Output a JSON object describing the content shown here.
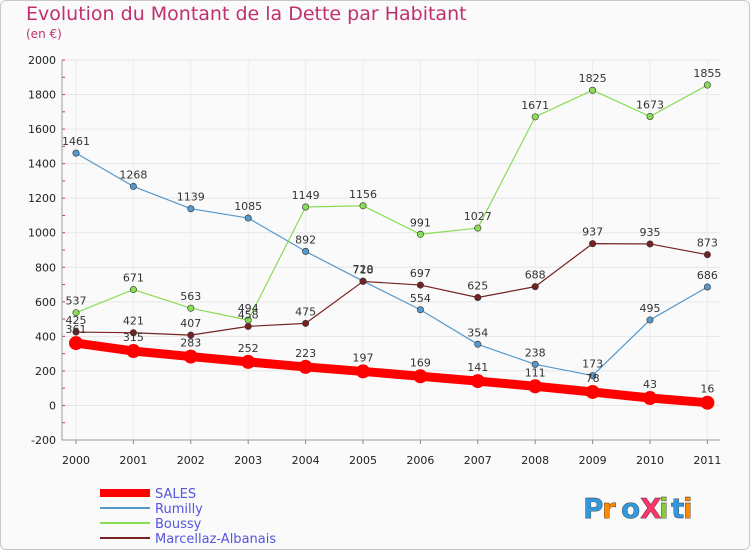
{
  "chart_data": {
    "type": "line",
    "title": "Evolution du Montant de la Dette par Habitant",
    "subtitle": "(en €)",
    "categories": [
      "2000",
      "2001",
      "2002",
      "2003",
      "2004",
      "2005",
      "2006",
      "2007",
      "2008",
      "2009",
      "2010",
      "2011"
    ],
    "ylim": [
      -200,
      2000
    ],
    "yticks": [
      -200,
      0,
      200,
      400,
      600,
      800,
      1000,
      1200,
      1400,
      1600,
      1800,
      2000
    ],
    "series": [
      {
        "name": "SALES",
        "color": "#ff0000",
        "values": [
          361,
          315,
          283,
          252,
          223,
          197,
          169,
          141,
          111,
          78,
          43,
          16
        ]
      },
      {
        "name": "Rumilly",
        "color": "#5599cc",
        "values": [
          1461,
          1268,
          1139,
          1085,
          892,
          720,
          554,
          354,
          238,
          173,
          495,
          686
        ]
      },
      {
        "name": "Boussy",
        "color": "#88dd55",
        "values": [
          537,
          671,
          563,
          494,
          1149,
          1156,
          991,
          1027,
          1671,
          1825,
          1673,
          1855
        ]
      },
      {
        "name": "Marcellaz-Albanais",
        "color": "#772222",
        "values": [
          425,
          421,
          407,
          458,
          475,
          718,
          697,
          625,
          688,
          937,
          935,
          873
        ]
      }
    ],
    "legend": "bottom-left"
  },
  "logo": {
    "text": "ProXiti"
  }
}
